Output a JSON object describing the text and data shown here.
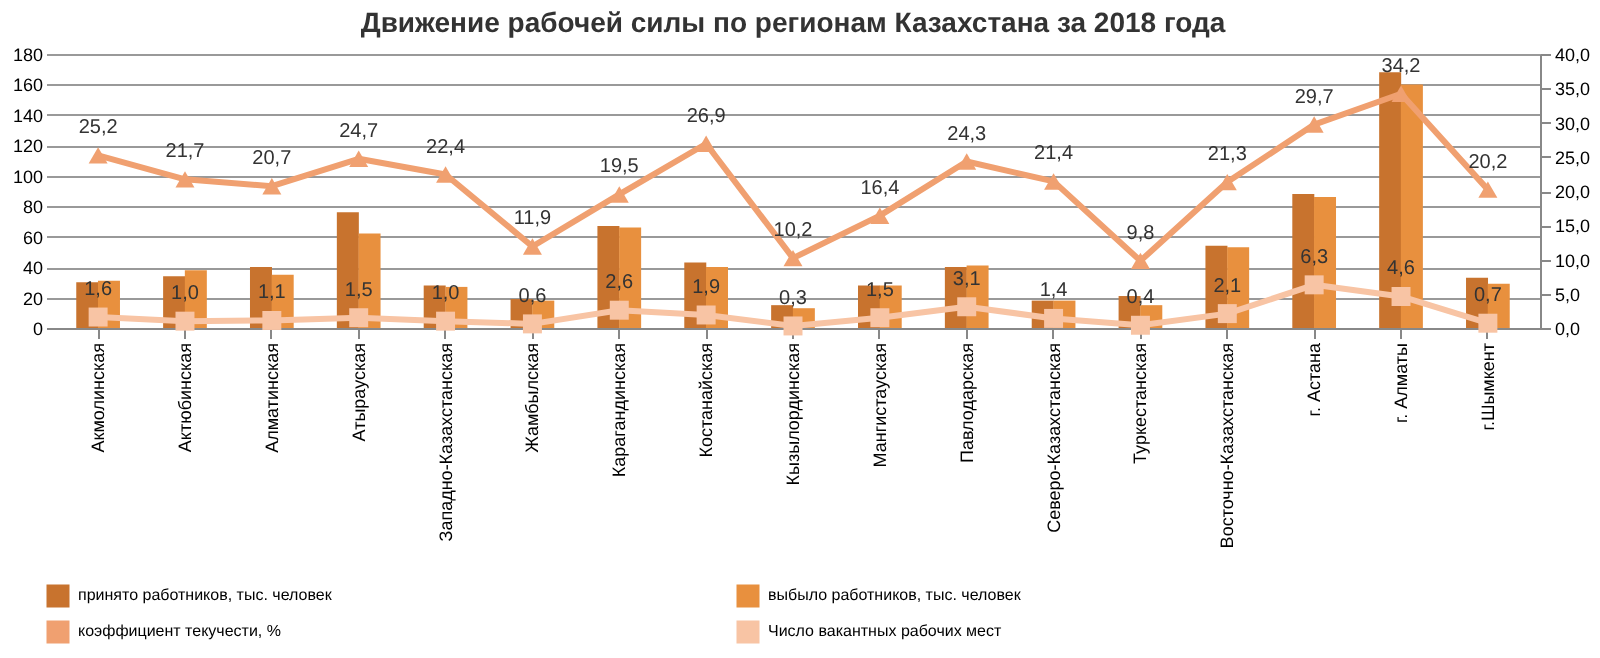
{
  "chart_data": {
    "type": "bar",
    "title": "Движение рабочей силы по регионам Казахстана за 2018 года",
    "categories": [
      "Акмолинская",
      "Актюбинская",
      "Алматинская",
      "Атырауская",
      "Западно-Казахстанская",
      "Жамбылская",
      "Карагандинская",
      "Костанайская",
      "Кызылординская",
      "Мангистауская",
      "Павлодарская",
      "Северо-Казахстанская",
      "Туркестанская",
      "Восточно-Казахстанская",
      "г. Астана",
      "г. Алматы",
      "г.Шымкент"
    ],
    "series": [
      {
        "name": "принято работников, тыс. человек",
        "color": "#c8732e",
        "values": [
          30,
          34,
          40,
          76,
          28,
          19,
          67,
          43,
          15,
          28,
          40,
          18,
          21,
          54,
          88,
          168,
          33
        ]
      },
      {
        "name": "выбыло работников, тыс. человек",
        "color": "#e8903e",
        "values": [
          31,
          38,
          35,
          62,
          27,
          18,
          66,
          40,
          13,
          28,
          41,
          18,
          15,
          53,
          86,
          160,
          29
        ]
      },
      {
        "name": "коэффициент текучести, %",
        "type": "line",
        "axis": "y2",
        "color": "#f0a070",
        "marker": "triangle",
        "line_style": "solid",
        "values": [
          25.2,
          21.7,
          20.7,
          24.7,
          22.4,
          11.9,
          19.5,
          26.9,
          10.2,
          16.4,
          24.3,
          21.4,
          9.8,
          21.3,
          29.7,
          34.2,
          20.2
        ],
        "value_labels": [
          "25,2",
          "21,7",
          "20,7",
          "24,7",
          "22,4",
          "11,9",
          "19,5",
          "26,9",
          "10,2",
          "16,4",
          "24,3",
          "21,4",
          "9,8",
          "21,3",
          "29,7",
          "34,2",
          "20,2"
        ]
      },
      {
        "name": "Число вакантных рабочих мест",
        "type": "line",
        "axis": "y2",
        "color": "#f8c4a4",
        "marker": "square",
        "line_style": "solid",
        "values": [
          1.6,
          1.0,
          1.1,
          1.5,
          1.0,
          0.6,
          2.6,
          1.9,
          0.3,
          1.5,
          3.1,
          1.4,
          0.4,
          2.1,
          6.3,
          4.6,
          0.7
        ],
        "value_labels": [
          "1,6",
          "1,0",
          "1,1",
          "1,5",
          "1,0",
          "0,6",
          "2,6",
          "1,9",
          "0,3",
          "1,5",
          "3,1",
          "1,4",
          "0,4",
          "2,1",
          "6,3",
          "4,6",
          "0,7"
        ]
      }
    ],
    "ylim": [
      0,
      180
    ],
    "yticks": [
      0,
      20,
      40,
      60,
      80,
      100,
      120,
      140,
      160,
      180
    ],
    "y2lim": [
      0,
      40
    ],
    "y2ticks": [
      {
        "value": 0,
        "label": "0,0"
      },
      {
        "value": 5,
        "label": "5,0"
      },
      {
        "value": 10,
        "label": "10,0"
      },
      {
        "value": 15,
        "label": "15,0"
      },
      {
        "value": 20,
        "label": "20,0"
      },
      {
        "value": 25,
        "label": "25,0"
      },
      {
        "value": 30,
        "label": "30,0"
      },
      {
        "value": 35,
        "label": "35,0"
      },
      {
        "value": 40,
        "label": "40,0"
      }
    ],
    "grid": "y",
    "legend": "bottom"
  }
}
